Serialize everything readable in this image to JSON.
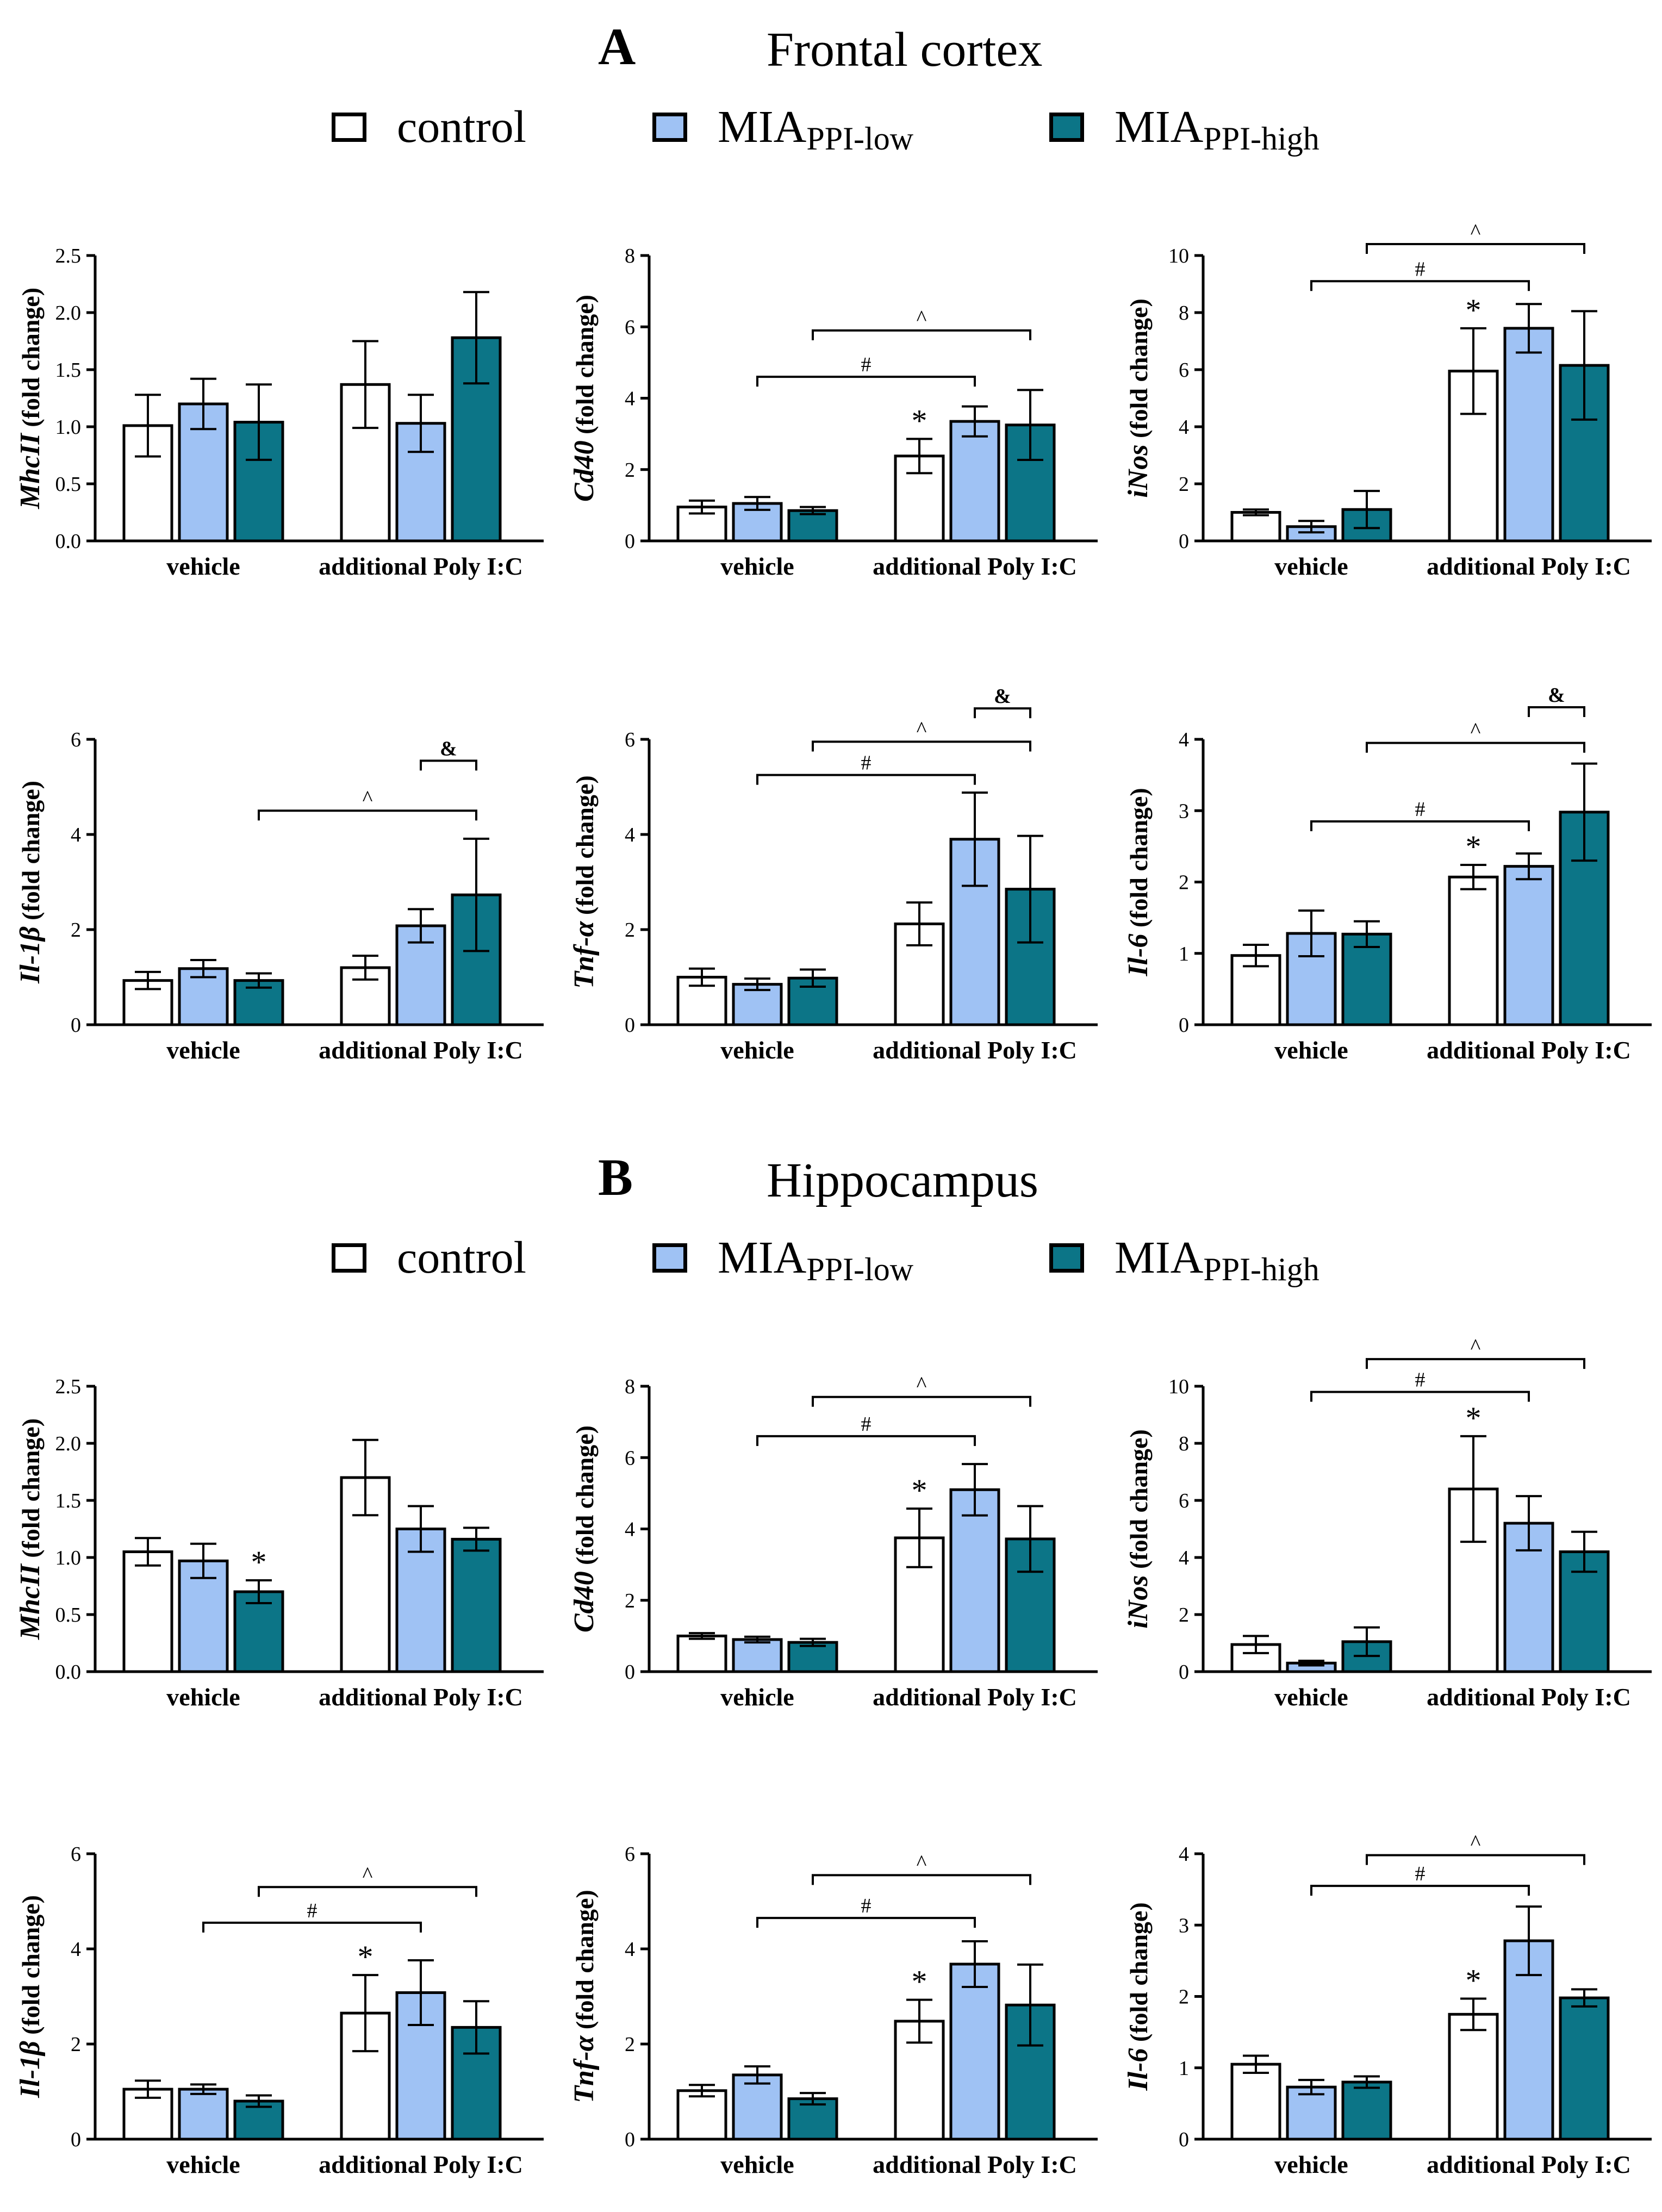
{
  "colors": {
    "control": "#ffffff",
    "low": "#9fc2f4",
    "high": "#0c7587"
  },
  "sections": [
    {
      "letter": "A",
      "name": "Frontal cortex"
    },
    {
      "letter": "B",
      "name": "Hippocampus"
    }
  ],
  "legend": {
    "control": "control",
    "low_main": "MIA",
    "low_sub": "PPI-low",
    "high_main": "MIA",
    "high_sub": "PPI-high"
  },
  "chart_data": [
    {
      "type": "bar",
      "section": "A",
      "gene": "MhcII",
      "ylabel_suffix": " (fold change)",
      "groups": [
        "vehicle",
        "additional Poly I:C"
      ],
      "series": [
        {
          "name": "control",
          "values": [
            1.01,
            1.37
          ],
          "errors": [
            0.27,
            0.38
          ]
        },
        {
          "name": "MIA PPI-low",
          "values": [
            1.2,
            1.03
          ],
          "errors": [
            0.22,
            0.25
          ]
        },
        {
          "name": "MIA PPI-high",
          "values": [
            1.04,
            1.78
          ],
          "errors": [
            0.33,
            0.4
          ]
        }
      ],
      "ylim": [
        0,
        2.5
      ],
      "yticks": [
        "0.0",
        "0.5",
        "1.0",
        "1.5",
        "2.0",
        "2.5"
      ],
      "stars": [],
      "brackets": []
    },
    {
      "type": "bar",
      "section": "A",
      "gene": "Cd40",
      "ylabel_suffix": " (fold change)",
      "groups": [
        "vehicle",
        "additional Poly I:C"
      ],
      "series": [
        {
          "name": "control",
          "values": [
            0.95,
            2.38
          ],
          "errors": [
            0.18,
            0.48
          ]
        },
        {
          "name": "MIA PPI-low",
          "values": [
            1.05,
            3.35
          ],
          "errors": [
            0.18,
            0.42
          ]
        },
        {
          "name": "MIA PPI-high",
          "values": [
            0.85,
            3.25
          ],
          "errors": [
            0.1,
            0.98
          ]
        }
      ],
      "ylim": [
        0,
        8
      ],
      "yticks": [
        "0",
        "2",
        "4",
        "6",
        "8"
      ],
      "stars": [
        {
          "bar": 3,
          "label": "*"
        }
      ],
      "brackets": [
        {
          "from": 1,
          "to": 4,
          "y": 4.6,
          "label": "#"
        },
        {
          "from": 2,
          "to": 5,
          "y": 5.9,
          "label": "^"
        }
      ]
    },
    {
      "type": "bar",
      "section": "A",
      "gene": "iNos",
      "ylabel_suffix": " (fold change)",
      "groups": [
        "vehicle",
        "additional Poly I:C"
      ],
      "series": [
        {
          "name": "control",
          "values": [
            1.0,
            5.95
          ],
          "errors": [
            0.1,
            1.5
          ]
        },
        {
          "name": "MIA PPI-low",
          "values": [
            0.5,
            7.45
          ],
          "errors": [
            0.2,
            0.85
          ]
        },
        {
          "name": "MIA PPI-high",
          "values": [
            1.1,
            6.15
          ],
          "errors": [
            0.65,
            1.9
          ]
        }
      ],
      "ylim": [
        0,
        10
      ],
      "yticks": [
        "0",
        "2",
        "4",
        "6",
        "8",
        "10"
      ],
      "stars": [
        {
          "bar": 3,
          "label": "*"
        }
      ],
      "brackets": [
        {
          "from": 1,
          "to": 4,
          "y": 9.1,
          "label": "#"
        },
        {
          "from": 2,
          "to": 5,
          "y": 10.4,
          "label": "^"
        }
      ]
    },
    {
      "type": "bar",
      "section": "A",
      "gene": "Il-1β",
      "ylabel_suffix": " (fold change)",
      "groups": [
        "vehicle",
        "additional Poly I:C"
      ],
      "series": [
        {
          "name": "control",
          "values": [
            0.93,
            1.2
          ],
          "errors": [
            0.18,
            0.25
          ]
        },
        {
          "name": "MIA PPI-low",
          "values": [
            1.18,
            2.08
          ],
          "errors": [
            0.18,
            0.35
          ]
        },
        {
          "name": "MIA PPI-high",
          "values": [
            0.93,
            2.73
          ],
          "errors": [
            0.15,
            1.18
          ]
        }
      ],
      "ylim": [
        0,
        6
      ],
      "yticks": [
        "0",
        "2",
        "4",
        "6"
      ],
      "stars": [],
      "brackets": [
        {
          "from": 2,
          "to": 5,
          "y": 4.5,
          "label": "^"
        },
        {
          "from": 4,
          "to": 5,
          "y": 5.55,
          "label": "&"
        }
      ]
    },
    {
      "type": "bar",
      "section": "A",
      "gene": "Tnf-α",
      "ylabel_suffix": " (fold change)",
      "groups": [
        "vehicle",
        "additional Poly I:C"
      ],
      "series": [
        {
          "name": "control",
          "values": [
            1.0,
            2.12
          ],
          "errors": [
            0.18,
            0.45
          ]
        },
        {
          "name": "MIA PPI-low",
          "values": [
            0.85,
            3.9
          ],
          "errors": [
            0.12,
            0.98
          ]
        },
        {
          "name": "MIA PPI-high",
          "values": [
            0.98,
            2.85
          ],
          "errors": [
            0.18,
            1.12
          ]
        }
      ],
      "ylim": [
        0,
        6
      ],
      "yticks": [
        "0",
        "2",
        "4",
        "6"
      ],
      "stars": [],
      "brackets": [
        {
          "from": 1,
          "to": 4,
          "y": 5.25,
          "label": "#"
        },
        {
          "from": 2,
          "to": 5,
          "y": 5.95,
          "label": "^"
        },
        {
          "from": 4,
          "to": 5,
          "y": 6.65,
          "label": "&"
        }
      ]
    },
    {
      "type": "bar",
      "section": "A",
      "gene": "Il-6",
      "ylabel_suffix": " (fold change)",
      "groups": [
        "vehicle",
        "additional Poly I:C"
      ],
      "series": [
        {
          "name": "control",
          "values": [
            0.97,
            2.07
          ],
          "errors": [
            0.15,
            0.17
          ]
        },
        {
          "name": "MIA PPI-low",
          "values": [
            1.28,
            2.22
          ],
          "errors": [
            0.32,
            0.18
          ]
        },
        {
          "name": "MIA PPI-high",
          "values": [
            1.27,
            2.98
          ],
          "errors": [
            0.18,
            0.68
          ]
        }
      ],
      "ylim": [
        0,
        4
      ],
      "yticks": [
        "0",
        "1",
        "2",
        "3",
        "4"
      ],
      "stars": [
        {
          "bar": 3,
          "label": "*"
        }
      ],
      "brackets": [
        {
          "from": 1,
          "to": 4,
          "y": 2.85,
          "label": "#"
        },
        {
          "from": 2,
          "to": 5,
          "y": 3.95,
          "label": "^"
        },
        {
          "from": 4,
          "to": 5,
          "y": 4.45,
          "label": "&"
        }
      ]
    },
    {
      "type": "bar",
      "section": "B",
      "gene": "MhcII",
      "ylabel_suffix": " (fold change)",
      "groups": [
        "vehicle",
        "additional Poly I:C"
      ],
      "series": [
        {
          "name": "control",
          "values": [
            1.05,
            1.7
          ],
          "errors": [
            0.12,
            0.33
          ]
        },
        {
          "name": "MIA PPI-low",
          "values": [
            0.97,
            1.25
          ],
          "errors": [
            0.15,
            0.2
          ]
        },
        {
          "name": "MIA PPI-high",
          "values": [
            0.7,
            1.16
          ],
          "errors": [
            0.1,
            0.1
          ]
        }
      ],
      "ylim": [
        0,
        2.5
      ],
      "yticks": [
        "0.0",
        "0.5",
        "1.0",
        "1.5",
        "2.0",
        "2.5"
      ],
      "stars": [
        {
          "bar": 2,
          "label": "*"
        }
      ],
      "brackets": []
    },
    {
      "type": "bar",
      "section": "B",
      "gene": "Cd40",
      "ylabel_suffix": " (fold change)",
      "groups": [
        "vehicle",
        "additional Poly I:C"
      ],
      "series": [
        {
          "name": "control",
          "values": [
            1.0,
            3.75
          ],
          "errors": [
            0.08,
            0.82
          ]
        },
        {
          "name": "MIA PPI-low",
          "values": [
            0.9,
            5.1
          ],
          "errors": [
            0.08,
            0.72
          ]
        },
        {
          "name": "MIA PPI-high",
          "values": [
            0.82,
            3.72
          ],
          "errors": [
            0.1,
            0.92
          ]
        }
      ],
      "ylim": [
        0,
        8
      ],
      "yticks": [
        "0",
        "2",
        "4",
        "6",
        "8"
      ],
      "stars": [
        {
          "bar": 3,
          "label": "*"
        }
      ],
      "brackets": [
        {
          "from": 1,
          "to": 4,
          "y": 6.6,
          "label": "#"
        },
        {
          "from": 2,
          "to": 5,
          "y": 7.7,
          "label": "^"
        }
      ]
    },
    {
      "type": "bar",
      "section": "B",
      "gene": "iNos",
      "ylabel_suffix": " (fold change)",
      "groups": [
        "vehicle",
        "additional Poly I:C"
      ],
      "series": [
        {
          "name": "control",
          "values": [
            0.95,
            6.4
          ],
          "errors": [
            0.3,
            1.85
          ]
        },
        {
          "name": "MIA PPI-low",
          "values": [
            0.3,
            5.2
          ],
          "errors": [
            0.08,
            0.95
          ]
        },
        {
          "name": "MIA PPI-high",
          "values": [
            1.05,
            4.2
          ],
          "errors": [
            0.5,
            0.7
          ]
        }
      ],
      "ylim": [
        0,
        10
      ],
      "yticks": [
        "0",
        "2",
        "4",
        "6",
        "8",
        "10"
      ],
      "stars": [
        {
          "bar": 3,
          "label": "*"
        }
      ],
      "brackets": [
        {
          "from": 1,
          "to": 4,
          "y": 9.8,
          "label": "#"
        },
        {
          "from": 2,
          "to": 5,
          "y": 10.95,
          "label": "^"
        }
      ]
    },
    {
      "type": "bar",
      "section": "B",
      "gene": "Il-1β",
      "ylabel_suffix": " (fold change)",
      "groups": [
        "vehicle",
        "additional Poly I:C"
      ],
      "series": [
        {
          "name": "control",
          "values": [
            1.05,
            2.65
          ],
          "errors": [
            0.18,
            0.8
          ]
        },
        {
          "name": "MIA PPI-low",
          "values": [
            1.05,
            3.08
          ],
          "errors": [
            0.1,
            0.68
          ]
        },
        {
          "name": "MIA PPI-high",
          "values": [
            0.8,
            2.35
          ],
          "errors": [
            0.12,
            0.55
          ]
        }
      ],
      "ylim": [
        0,
        6
      ],
      "yticks": [
        "0",
        "2",
        "4",
        "6"
      ],
      "stars": [
        {
          "bar": 3,
          "label": "*"
        }
      ],
      "brackets": [
        {
          "from": 1,
          "to": 4,
          "y": 4.55,
          "label": "#"
        },
        {
          "from": 2,
          "to": 5,
          "y": 5.3,
          "label": "^"
        }
      ]
    },
    {
      "type": "bar",
      "section": "B",
      "gene": "Tnf-α",
      "ylabel_suffix": " (fold change)",
      "groups": [
        "vehicle",
        "additional Poly I:C"
      ],
      "series": [
        {
          "name": "control",
          "values": [
            1.02,
            2.48
          ],
          "errors": [
            0.12,
            0.45
          ]
        },
        {
          "name": "MIA PPI-low",
          "values": [
            1.35,
            3.68
          ],
          "errors": [
            0.18,
            0.48
          ]
        },
        {
          "name": "MIA PPI-high",
          "values": [
            0.85,
            2.82
          ],
          "errors": [
            0.12,
            0.85
          ]
        }
      ],
      "ylim": [
        0,
        6
      ],
      "yticks": [
        "0",
        "2",
        "4",
        "6"
      ],
      "stars": [
        {
          "bar": 3,
          "label": "*"
        }
      ],
      "brackets": [
        {
          "from": 1,
          "to": 4,
          "y": 4.65,
          "label": "#"
        },
        {
          "from": 2,
          "to": 5,
          "y": 5.55,
          "label": "^"
        }
      ]
    },
    {
      "type": "bar",
      "section": "B",
      "gene": "Il-6",
      "ylabel_suffix": " (fold change)",
      "groups": [
        "vehicle",
        "additional Poly I:C"
      ],
      "series": [
        {
          "name": "control",
          "values": [
            1.05,
            1.75
          ],
          "errors": [
            0.12,
            0.22
          ]
        },
        {
          "name": "MIA PPI-low",
          "values": [
            0.73,
            2.78
          ],
          "errors": [
            0.1,
            0.48
          ]
        },
        {
          "name": "MIA PPI-high",
          "values": [
            0.8,
            1.98
          ],
          "errors": [
            0.08,
            0.12
          ]
        }
      ],
      "ylim": [
        0,
        4
      ],
      "yticks": [
        "0",
        "1",
        "2",
        "3",
        "4"
      ],
      "stars": [
        {
          "bar": 3,
          "label": "*"
        }
      ],
      "brackets": [
        {
          "from": 1,
          "to": 4,
          "y": 3.55,
          "label": "#"
        },
        {
          "from": 2,
          "to": 5,
          "y": 3.98,
          "label": "^"
        }
      ]
    }
  ]
}
